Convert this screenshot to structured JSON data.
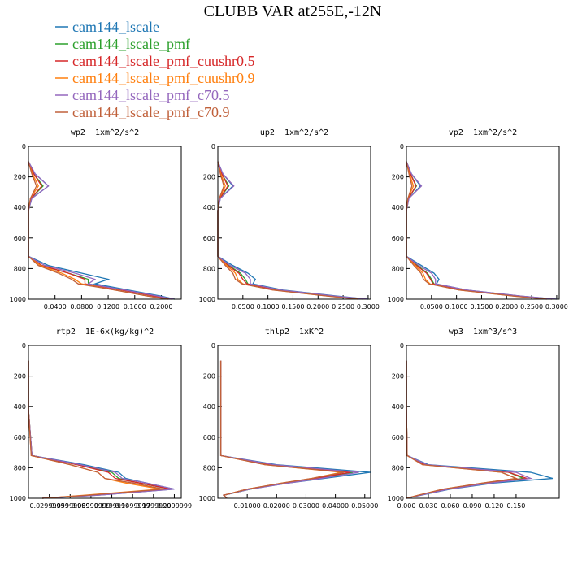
{
  "chart_data": {
    "title": "CLUBB VAR at255E,-12N",
    "legend": [
      {
        "name": "cam144_lscale",
        "color": "#1f77b4"
      },
      {
        "name": "cam144_lscale_pmf",
        "color": "#2ca02c"
      },
      {
        "name": "cam144_lscale_pmf_cuushr0.5",
        "color": "#d62728"
      },
      {
        "name": "cam144_lscale_pmf_cuushr0.9",
        "color": "#ff7f0e"
      },
      {
        "name": "cam144_lscale_pmf_c70.5",
        "color": "#9467bd"
      },
      {
        "name": "cam144_lscale_pmf_c70.9",
        "color": "#c0603a"
      }
    ],
    "panels": [
      {
        "type": "line",
        "title": "wp2  1xm^2/s^2",
        "y": [
          100,
          180,
          260,
          340,
          420,
          720,
          780,
          830,
          870,
          900,
          940,
          980,
          1000
        ],
        "ylim": [
          0,
          1000
        ],
        "invert_y": true,
        "yticks": [
          0,
          200,
          400,
          600,
          800,
          1000
        ],
        "xlim": [
          0,
          0.23
        ],
        "xticks": [
          {
            "value": 0.04,
            "label": "0.0400"
          },
          {
            "value": 0.08,
            "label": "0.0800"
          },
          {
            "value": 0.12,
            "label": "0.1200"
          },
          {
            "value": 0.16,
            "label": "0.1600"
          },
          {
            "value": 0.2,
            "label": "0.2000"
          }
        ],
        "series": [
          {
            "values": [
              0,
              0.01,
              0.03,
              0.005,
              0,
              0,
              0.03,
              0.08,
              0.12,
              0.1,
              0.15,
              0.2,
              0.22
            ]
          },
          {
            "values": [
              0,
              0.008,
              0.022,
              0.004,
              0,
              0,
              0.02,
              0.06,
              0.09,
              0.09,
              0.14,
              0.19,
              0.22
            ]
          },
          {
            "values": [
              0,
              0.008,
              0.02,
              0.004,
              0,
              0,
              0.02,
              0.06,
              0.085,
              0.085,
              0.14,
              0.19,
              0.215
            ]
          },
          {
            "values": [
              0,
              0.006,
              0.015,
              0.003,
              0,
              0,
              0.018,
              0.05,
              0.07,
              0.08,
              0.13,
              0.18,
              0.21
            ]
          },
          {
            "values": [
              0,
              0.01,
              0.03,
              0.005,
              0,
              0,
              0.025,
              0.07,
              0.1,
              0.09,
              0.145,
              0.195,
              0.22
            ]
          },
          {
            "values": [
              0,
              0.005,
              0.012,
              0.003,
              0,
              0,
              0.015,
              0.045,
              0.065,
              0.075,
              0.13,
              0.18,
              0.21
            ]
          }
        ]
      },
      {
        "type": "line",
        "title": "up2  1xm^2/s^2",
        "y": [
          100,
          180,
          260,
          340,
          420,
          720,
          780,
          830,
          870,
          900,
          940,
          980,
          1000
        ],
        "ylim": [
          0,
          1000
        ],
        "invert_y": true,
        "yticks": [
          0,
          200,
          400,
          600,
          800,
          1000
        ],
        "xlim": [
          0,
          0.305
        ],
        "xticks": [
          {
            "value": 0.05,
            "label": "0.0500"
          },
          {
            "value": 0.1,
            "label": "0.1000"
          },
          {
            "value": 0.15,
            "label": "0.1500"
          },
          {
            "value": 0.2,
            "label": "0.2000"
          },
          {
            "value": 0.25,
            "label": "0.2500"
          },
          {
            "value": 0.3,
            "label": "0.3000"
          }
        ],
        "series": [
          {
            "values": [
              0,
              0.01,
              0.03,
              0.005,
              0,
              0,
              0.03,
              0.06,
              0.075,
              0.07,
              0.13,
              0.24,
              0.3
            ]
          },
          {
            "values": [
              0,
              0.008,
              0.022,
              0.004,
              0,
              0,
              0.022,
              0.045,
              0.055,
              0.06,
              0.12,
              0.23,
              0.29
            ]
          },
          {
            "values": [
              0,
              0.008,
              0.02,
              0.004,
              0,
              0,
              0.02,
              0.042,
              0.05,
              0.058,
              0.12,
              0.23,
              0.29
            ]
          },
          {
            "values": [
              0,
              0.006,
              0.015,
              0.003,
              0,
              0,
              0.018,
              0.035,
              0.04,
              0.05,
              0.11,
              0.22,
              0.28
            ]
          },
          {
            "values": [
              0,
              0.01,
              0.032,
              0.005,
              0,
              0,
              0.025,
              0.055,
              0.065,
              0.065,
              0.125,
              0.235,
              0.3
            ]
          },
          {
            "values": [
              0,
              0.005,
              0.012,
              0.003,
              0,
              0,
              0.015,
              0.03,
              0.035,
              0.048,
              0.11,
              0.22,
              0.28
            ]
          }
        ]
      },
      {
        "type": "line",
        "title": "vp2  1xm^2/s^2",
        "y": [
          100,
          180,
          260,
          340,
          420,
          720,
          780,
          830,
          870,
          900,
          940,
          980,
          1000
        ],
        "ylim": [
          0,
          1000
        ],
        "invert_y": true,
        "yticks": [
          0,
          200,
          400,
          600,
          800,
          1000
        ],
        "xlim": [
          0,
          0.305
        ],
        "xticks": [
          {
            "value": 0.05,
            "label": "0.0500"
          },
          {
            "value": 0.1,
            "label": "0.1000"
          },
          {
            "value": 0.15,
            "label": "0.1500"
          },
          {
            "value": 0.2,
            "label": "0.2000"
          },
          {
            "value": 0.25,
            "label": "0.2500"
          },
          {
            "value": 0.3,
            "label": "0.3000"
          }
        ],
        "series": [
          {
            "values": [
              0,
              0.01,
              0.028,
              0.005,
              0,
              0,
              0.03,
              0.055,
              0.065,
              0.06,
              0.12,
              0.23,
              0.3
            ]
          },
          {
            "values": [
              0,
              0.008,
              0.02,
              0.004,
              0,
              0,
              0.022,
              0.042,
              0.05,
              0.055,
              0.115,
              0.225,
              0.29
            ]
          },
          {
            "values": [
              0,
              0.008,
              0.019,
              0.004,
              0,
              0,
              0.02,
              0.04,
              0.048,
              0.053,
              0.115,
              0.225,
              0.29
            ]
          },
          {
            "values": [
              0,
              0.006,
              0.014,
              0.003,
              0,
              0,
              0.018,
              0.033,
              0.038,
              0.047,
              0.105,
              0.215,
              0.28
            ]
          },
          {
            "values": [
              0,
              0.01,
              0.03,
              0.005,
              0,
              0,
              0.025,
              0.05,
              0.058,
              0.058,
              0.12,
              0.23,
              0.3
            ]
          },
          {
            "values": [
              0,
              0.005,
              0.011,
              0.003,
              0,
              0,
              0.015,
              0.029,
              0.034,
              0.045,
              0.105,
              0.215,
              0.28
            ]
          }
        ]
      },
      {
        "type": "line",
        "title": "rtp2  1E-6x(kg/kg)^2",
        "y": [
          100,
          180,
          260,
          340,
          420,
          720,
          780,
          830,
          870,
          900,
          940,
          980,
          1000
        ],
        "ylim": [
          0,
          1000
        ],
        "invert_y": true,
        "yticks": [
          0,
          200,
          400,
          600,
          800,
          1000
        ],
        "xlim": [
          0,
          0.22
        ],
        "xticks": [
          {
            "value": 0.03,
            "label": "0.02999999"
          },
          {
            "value": 0.06,
            "label": "0.05999999"
          },
          {
            "value": 0.09,
            "label": "0.08999999"
          },
          {
            "value": 0.12,
            "label": "0.1199999"
          },
          {
            "value": 0.15,
            "label": "0.1499999"
          },
          {
            "value": 0.18,
            "label": "0.1799999"
          },
          {
            "value": 0.21,
            "label": "0.2099999"
          }
        ],
        "series": [
          {
            "values": [
              0,
              0,
              0,
              0,
              0,
              0.005,
              0.08,
              0.13,
              0.14,
              0.17,
              0.21,
              0.1,
              0.02
            ]
          },
          {
            "values": [
              0,
              0,
              0,
              0,
              0,
              0.005,
              0.07,
              0.12,
              0.13,
              0.16,
              0.205,
              0.09,
              0.02
            ]
          },
          {
            "values": [
              0,
              0,
              0,
              0,
              0,
              0.005,
              0.07,
              0.115,
              0.125,
              0.16,
              0.205,
              0.09,
              0.02
            ]
          },
          {
            "values": [
              0,
              0,
              0,
              0,
              0,
              0.004,
              0.06,
              0.1,
              0.11,
              0.14,
              0.19,
              0.08,
              0.02
            ]
          },
          {
            "values": [
              0,
              0,
              0,
              0,
              0,
              0.005,
              0.075,
              0.125,
              0.135,
              0.17,
              0.21,
              0.1,
              0.02
            ]
          },
          {
            "values": [
              0,
              0,
              0,
              0,
              0,
              0.004,
              0.06,
              0.1,
              0.11,
              0.15,
              0.195,
              0.085,
              0.02
            ]
          }
        ]
      },
      {
        "type": "line",
        "title": "thlp2  1xK^2",
        "y": [
          100,
          180,
          260,
          340,
          420,
          720,
          780,
          830,
          870,
          900,
          940,
          980,
          1000
        ],
        "ylim": [
          0,
          1000
        ],
        "invert_y": true,
        "yticks": [
          0,
          200,
          400,
          600,
          800,
          1000
        ],
        "xlim": [
          0,
          0.052
        ],
        "xticks": [
          {
            "value": 0.01,
            "label": "0.01000"
          },
          {
            "value": 0.02,
            "label": "0.02000"
          },
          {
            "value": 0.03,
            "label": "0.03000"
          },
          {
            "value": 0.04,
            "label": "0.04000"
          },
          {
            "value": 0.05,
            "label": "0.05000"
          }
        ],
        "series": [
          {
            "values": [
              0.001,
              0.001,
              0.001,
              0.001,
              0.001,
              0.001,
              0.02,
              0.052,
              0.036,
              0.024,
              0.011,
              0.002,
              0.003
            ]
          },
          {
            "values": [
              0.001,
              0.001,
              0.001,
              0.001,
              0.001,
              0.001,
              0.018,
              0.046,
              0.034,
              0.023,
              0.011,
              0.002,
              0.003
            ]
          },
          {
            "values": [
              0.001,
              0.001,
              0.001,
              0.001,
              0.001,
              0.001,
              0.018,
              0.045,
              0.033,
              0.023,
              0.01,
              0.002,
              0.003
            ]
          },
          {
            "values": [
              0.001,
              0.001,
              0.001,
              0.001,
              0.001,
              0.001,
              0.016,
              0.042,
              0.032,
              0.022,
              0.01,
              0.002,
              0.003
            ]
          },
          {
            "values": [
              0.001,
              0.001,
              0.001,
              0.001,
              0.001,
              0.001,
              0.019,
              0.048,
              0.035,
              0.024,
              0.011,
              0.002,
              0.003
            ]
          },
          {
            "values": [
              0.001,
              0.001,
              0.001,
              0.001,
              0.001,
              0.001,
              0.016,
              0.043,
              0.032,
              0.022,
              0.01,
              0.002,
              0.003
            ]
          }
        ]
      },
      {
        "type": "line",
        "title": "wp3  1xm^3/s^3",
        "y": [
          100,
          180,
          260,
          340,
          420,
          720,
          780,
          830,
          870,
          900,
          940,
          980,
          1000
        ],
        "ylim": [
          0,
          1000
        ],
        "invert_y": true,
        "yticks": [
          0,
          200,
          400,
          600,
          800,
          1000
        ],
        "xlim": [
          0,
          0.209
        ],
        "xticks": [
          {
            "value": 0,
            "label": "0.000"
          },
          {
            "value": 0.03,
            "label": "0.030"
          },
          {
            "value": 0.06,
            "label": "0.060"
          },
          {
            "value": 0.09,
            "label": "0.090"
          },
          {
            "value": 0.12,
            "label": "0.120"
          },
          {
            "value": 0.15,
            "label": "0.150"
          }
        ],
        "series": [
          {
            "values": [
              0,
              0,
              0,
              0,
              0,
              0.001,
              0.03,
              0.17,
              0.2,
              0.12,
              0.06,
              0.02,
              0
            ]
          },
          {
            "values": [
              0,
              0,
              0,
              0,
              0,
              0.001,
              0.025,
              0.14,
              0.16,
              0.11,
              0.055,
              0.018,
              0
            ]
          },
          {
            "values": [
              0,
              0,
              0,
              0,
              0,
              0.001,
              0.025,
              0.14,
              0.165,
              0.11,
              0.055,
              0.018,
              0
            ]
          },
          {
            "values": [
              0,
              0,
              0,
              0,
              0,
              0.001,
              0.022,
              0.13,
              0.15,
              0.105,
              0.05,
              0.016,
              0
            ]
          },
          {
            "values": [
              0,
              0,
              0,
              0,
              0,
              0.001,
              0.028,
              0.15,
              0.17,
              0.115,
              0.058,
              0.019,
              0
            ]
          },
          {
            "values": [
              0,
              0,
              0,
              0,
              0,
              0.001,
              0.022,
              0.13,
              0.15,
              0.105,
              0.05,
              0.016,
              0
            ]
          }
        ]
      }
    ]
  }
}
